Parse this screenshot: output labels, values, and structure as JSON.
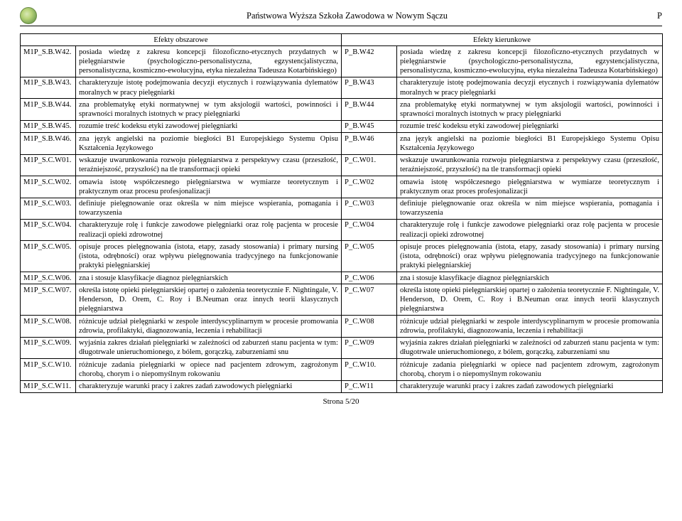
{
  "header": {
    "institution": "Państwowa Wyższa Szkoła Zawodowa w Nowym Sączu",
    "corner": "P"
  },
  "table": {
    "left_header": "Efekty obszarowe",
    "right_header": "Efekty kierunkowe",
    "rows": [
      {
        "l_code": "M1P_S.B.W42.",
        "l_desc": "posiada wiedzę z zakresu koncepcji filozoficzno-etycznych przydatnych w pielęgniarstwie (psychologiczno-personalistyczna, egzystencjalistyczna, personalistyczna, kosmiczno-ewolucyjna, etyka niezależna Tadeusza Kotarbińskiego)",
        "r_code": "P_B.W42",
        "r_desc": "posiada wiedzę z zakresu koncepcji filozoficzno-etycznych przydatnych w pielęgniarstwie (psychologiczno-personalistyczna, egzystencjalistyczna, personalistyczna, kosmiczno-ewolucyjna, etyka niezależna Tadeusza Kotarbińskiego)"
      },
      {
        "l_code": "M1P_S.B.W43.",
        "l_desc": "charakteryzuje istotę podejmowania decyzji etycznych i rozwiązywania dylematów moralnych w pracy pielęgniarki",
        "r_code": "P_B.W43",
        "r_desc": "charakteryzuje istotę podejmowania decyzji etycznych i rozwiązywania dylematów moralnych w pracy pielęgniarki"
      },
      {
        "l_code": "M1P_S.B.W44.",
        "l_desc": "zna problematykę etyki normatywnej w tym aksjologii wartości, powinności i sprawności moralnych istotnych w pracy pielęgniarki",
        "r_code": "P_B.W44",
        "r_desc": "zna problematykę etyki normatywnej w tym aksjologii wartości, powinności i sprawności moralnych istotnych w pracy pielęgniarki"
      },
      {
        "l_code": "M1P_S.B.W45.",
        "l_desc": "rozumie treść kodeksu etyki zawodowej pielęgniarki",
        "r_code": "P_B.W45",
        "r_desc": "rozumie treść kodeksu etyki zawodowej pielęgniarki"
      },
      {
        "l_code": "M1P_S.B.W46.",
        "l_desc": "zna język angielski na poziomie biegłości B1 Europejskiego Systemu Opisu Kształcenia Językowego",
        "r_code": "P_B.W46",
        "r_desc": "zna język angielski na poziomie biegłości B1 Europejskiego Systemu Opisu Kształcenia Językowego"
      },
      {
        "l_code": "M1P_S.C.W01.",
        "l_desc": "wskazuje uwarunkowania rozwoju pielęgniarstwa z perspektywy czasu (przeszłość, teraźniejszość, przyszłość) na tle transformacji opieki",
        "r_code": "P_C.W01.",
        "r_desc": "wskazuje uwarunkowania rozwoju pielęgniarstwa z perspektywy czasu (przeszłość, teraźniejszość, przyszłość) na tle transformacji opieki"
      },
      {
        "l_code": "M1P_S.C.W02.",
        "l_desc": "omawia istotę współczesnego pielęgniarstwa w wymiarze teoretycznym i praktycznym oraz procesu profesjonalizacji",
        "r_code": "P_C.W02",
        "r_desc": "omawia istotę współczesnego pielęgniarstwa w wymiarze teoretycznym i praktycznym oraz proces profesjonalizacji"
      },
      {
        "l_code": "M1P_S.C.W03.",
        "l_desc": "definiuje pielęgnowanie oraz określa w nim miejsce wspierania, pomagania i towarzyszenia",
        "r_code": "P_C.W03",
        "r_desc": "definiuje pielęgnowanie oraz określa w nim miejsce wspierania, pomagania i towarzyszenia"
      },
      {
        "l_code": "M1P_S.C.W04.",
        "l_desc": "charakteryzuje rolę i funkcje zawodowe pielęgniarki oraz rolę pacjenta w procesie realizacji opieki zdrowotnej",
        "r_code": "P_C.W04",
        "r_desc": "charakteryzuje rolę i funkcje zawodowe pielęgniarki oraz rolę pacjenta w procesie realizacji opieki zdrowotnej"
      },
      {
        "l_code": "M1P_S.C.W05.",
        "l_desc": "opisuje proces pielęgnowania (istota, etapy, zasady stosowania) i primary nursing (istota, odrębności) oraz wpływu pielęgnowania tradycyjnego na funkcjonowanie praktyki pielęgniarskiej",
        "r_code": "P_C.W05",
        "r_desc": "opisuje proces pielęgnowania (istota, etapy, zasady stosowania) i primary nursing (istota, odrębności) oraz wpływu pielęgnowania tradycyjnego na funkcjonowanie praktyki pielęgniarskiej"
      },
      {
        "l_code": "M1P_S.C.W06.",
        "l_desc": "zna i stosuje klasyfikacje diagnoz pielęgniarskich",
        "r_code": "P_C.W06",
        "r_desc": "zna i stosuje klasyfikacje diagnoz pielęgniarskich"
      },
      {
        "l_code": "M1P_S.C.W07.",
        "l_desc": "określa istotę opieki pielęgniarskiej opartej o założenia teoretycznie F. Nightingale, V. Henderson, D. Orem, C. Roy i B.Neuman oraz innych teorii klasycznych pielęgniarstwa",
        "r_code": "P_C.W07",
        "r_desc": "określa istotę opieki pielęgniarskiej opartej o założenia teoretycznie F. Nightingale, V. Henderson, D. Orem, C. Roy i B.Neuman oraz innych teorii klasycznych pielęgniarstwa"
      },
      {
        "l_code": "M1P_S.C.W08.",
        "l_desc": "różnicuje udział pielęgniarki w zespole interdyscyplinarnym w procesie promowania zdrowia, profilaktyki, diagnozowania, leczenia i rehabilitacji",
        "r_code": "P_C.W08",
        "r_desc": "różnicuje udział pielęgniarki w zespole interdyscyplinarnym w procesie promowania zdrowia, profilaktyki, diagnozowania, leczenia i rehabilitacji"
      },
      {
        "l_code": "M1P_S.C.W09.",
        "l_desc": "wyjaśnia zakres działań pielęgniarki w zależności od zaburzeń stanu pacjenta w tym: długotrwale unieruchomionego, z bólem, gorączką, zaburzeniami snu",
        "r_code": "P_C.W09",
        "r_desc": "wyjaśnia zakres działań pielęgniarki w zależności od zaburzeń stanu pacjenta w tym: długotrwale unieruchomionego, z bólem, gorączką, zaburzeniami snu"
      },
      {
        "l_code": "M1P_S.C.W10.",
        "l_desc": "różnicuje zadania pielęgniarki w opiece nad pacjentem zdrowym, zagrożonym chorobą, chorym i o niepomyślnym rokowaniu",
        "r_code": "P_C.W10.",
        "r_desc": "różnicuje zadania pielęgniarki w opiece nad pacjentem zdrowym, zagrożonym chorobą, chorym i o niepomyślnym rokowaniu"
      },
      {
        "l_code": "M1P_S.C.W11.",
        "l_desc": "charakteryzuje warunki pracy i zakres zadań zawodowych pielęgniarki",
        "r_code": "P_C.W11",
        "r_desc": "charakteryzuje warunki pracy i zakres zadań zawodowych pielęgniarki"
      }
    ]
  },
  "footer": "Strona 5/20"
}
